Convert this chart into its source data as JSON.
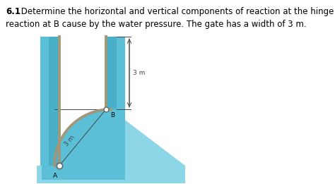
{
  "title_bold": "6.1",
  "title_line1": " Determine the horizontal and vertical components of reaction at the hinge A and the normal",
  "title_line2": "reaction at B cause by the water pressure. The gate has a width of 3 m.",
  "title_fontsize": 8.5,
  "water_blue": "#5bbfd8",
  "water_blue_outer": "#6ecae0",
  "water_blue_bottom": "#8dd6e8",
  "wall_teal": "#4aafc8",
  "gate_color": "#a09878",
  "gate_lw": 2.8,
  "dim_color": "#444444",
  "label_fontsize": 6.5,
  "dim_fontsize": 6.5,
  "fig_bg": "#ffffff",
  "label_A": "A",
  "label_B": "B",
  "dim_label": "3 m"
}
